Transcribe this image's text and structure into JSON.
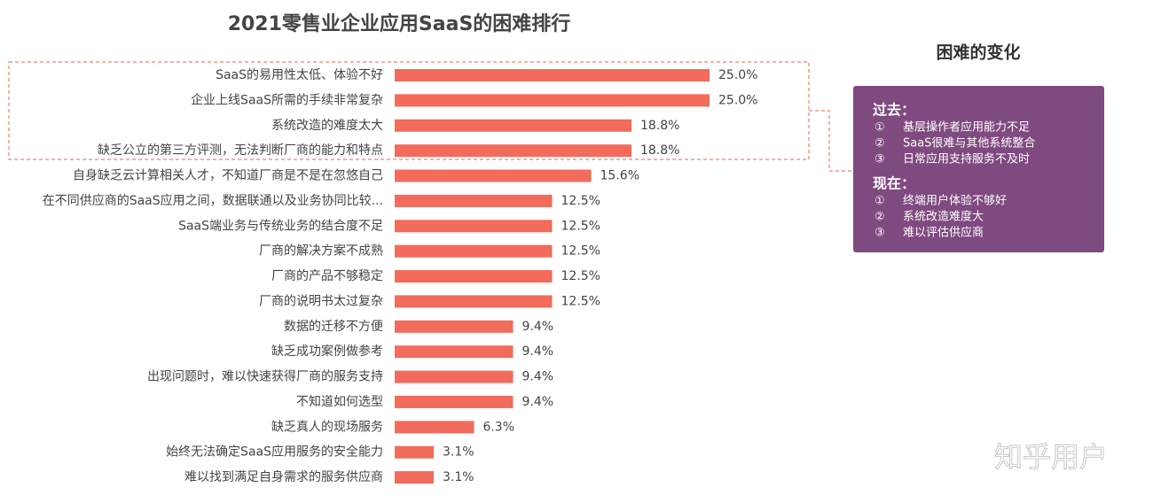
{
  "chart_data": {
    "type": "bar",
    "orientation": "horizontal",
    "title": "2021零售业企业应用SaaS的困难排行",
    "color": "#f26b5b",
    "categories": [
      "SaaS的易用性太低、体验不好",
      "企业上线SaaS所需的手续非常复杂",
      "系统改造的难度太大",
      "缺乏公立的第三方评测，无法判断厂商的能力和特点",
      "自身缺乏云计算相关人才，不知道厂商是不是在忽悠自己",
      "在不同供应商的SaaS应用之间，数据联通以及业务协同比较...",
      "SaaS端业务与传统业务的结合度不足",
      "厂商的解决方案不成熟",
      "厂商的产品不够稳定",
      "厂商的说明书太过复杂",
      "数据的迁移不方便",
      "缺乏成功案例做参考",
      "出现问题时，难以快速获得厂商的服务支持",
      "不知道如何选型",
      "缺乏真人的现场服务",
      "始终无法确定SaaS应用服务的安全能力",
      "难以找到满足自身需求的服务供应商"
    ],
    "values": [
      25,
      25,
      18.8,
      18.8,
      15.6,
      12.5,
      12.5,
      12.5,
      12.5,
      12.5,
      9.4,
      9.4,
      9.4,
      9.4,
      6.3,
      3.1,
      3.1
    ],
    "value_labels": [
      "25.0%",
      "25.0%",
      "18.8%",
      "18.8%",
      "15.6%",
      "12.5%",
      "12.5%",
      "12.5%",
      "12.5%",
      "12.5%",
      "9.4%",
      "9.4%",
      "9.4%",
      "9.4%",
      "6.3%",
      "3.1%",
      "3.1%"
    ]
  },
  "panel": {
    "title": "困难的变化",
    "sections": [
      {
        "heading": "过去：",
        "items": [
          {
            "marker": "①",
            "text": "基层操作者应用能力不足"
          },
          {
            "marker": "②",
            "text": "SaaS很难与其他系统整合"
          },
          {
            "marker": "③",
            "text": "日常应用支持服务不及时"
          }
        ]
      },
      {
        "heading": "现在：",
        "items": [
          {
            "marker": "①",
            "text": "终端用户体验不够好"
          },
          {
            "marker": "②",
            "text": "系统改造难度大"
          },
          {
            "marker": "③",
            "text": "难以评估供应商"
          }
        ]
      }
    ]
  },
  "watermark": "知乎用户"
}
